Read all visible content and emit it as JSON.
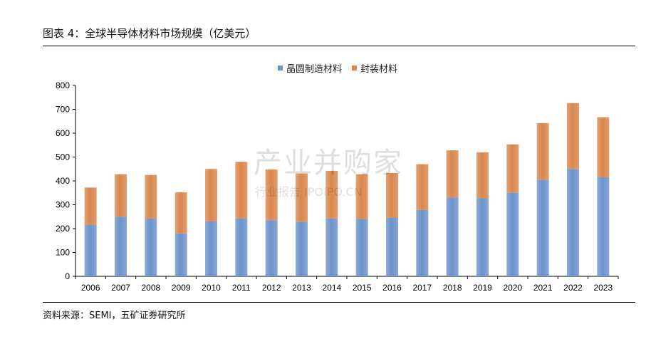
{
  "title": "图表 4：全球半导体材料市场规模（亿美元）",
  "source": "资料来源：SEMI，五矿证券研究所",
  "watermark": {
    "main": "产业并购家",
    "sub": "行业报告 IPOIPO.CN"
  },
  "colors": {
    "series1": "#6d93cc",
    "series2": "#d9874e"
  },
  "chart_data": {
    "type": "bar",
    "stacked": true,
    "categories": [
      "2006",
      "2007",
      "2008",
      "2009",
      "2010",
      "2011",
      "2012",
      "2013",
      "2014",
      "2015",
      "2016",
      "2017",
      "2018",
      "2019",
      "2020",
      "2021",
      "2022",
      "2023"
    ],
    "series": [
      {
        "name": "晶圆制造材料",
        "values": [
          215,
          250,
          242,
          180,
          230,
          242,
          235,
          228,
          242,
          240,
          245,
          278,
          330,
          328,
          350,
          405,
          450,
          415
        ]
      },
      {
        "name": "封装材料",
        "values": [
          157,
          178,
          183,
          172,
          220,
          238,
          213,
          203,
          200,
          188,
          188,
          192,
          198,
          192,
          203,
          237,
          276,
          252
        ]
      }
    ],
    "ylim": [
      0,
      800
    ],
    "yticks": [
      0,
      100,
      200,
      300,
      400,
      500,
      600,
      700,
      800
    ],
    "xlabel": "",
    "ylabel": "",
    "legend_position": "top-center",
    "grid": false
  }
}
